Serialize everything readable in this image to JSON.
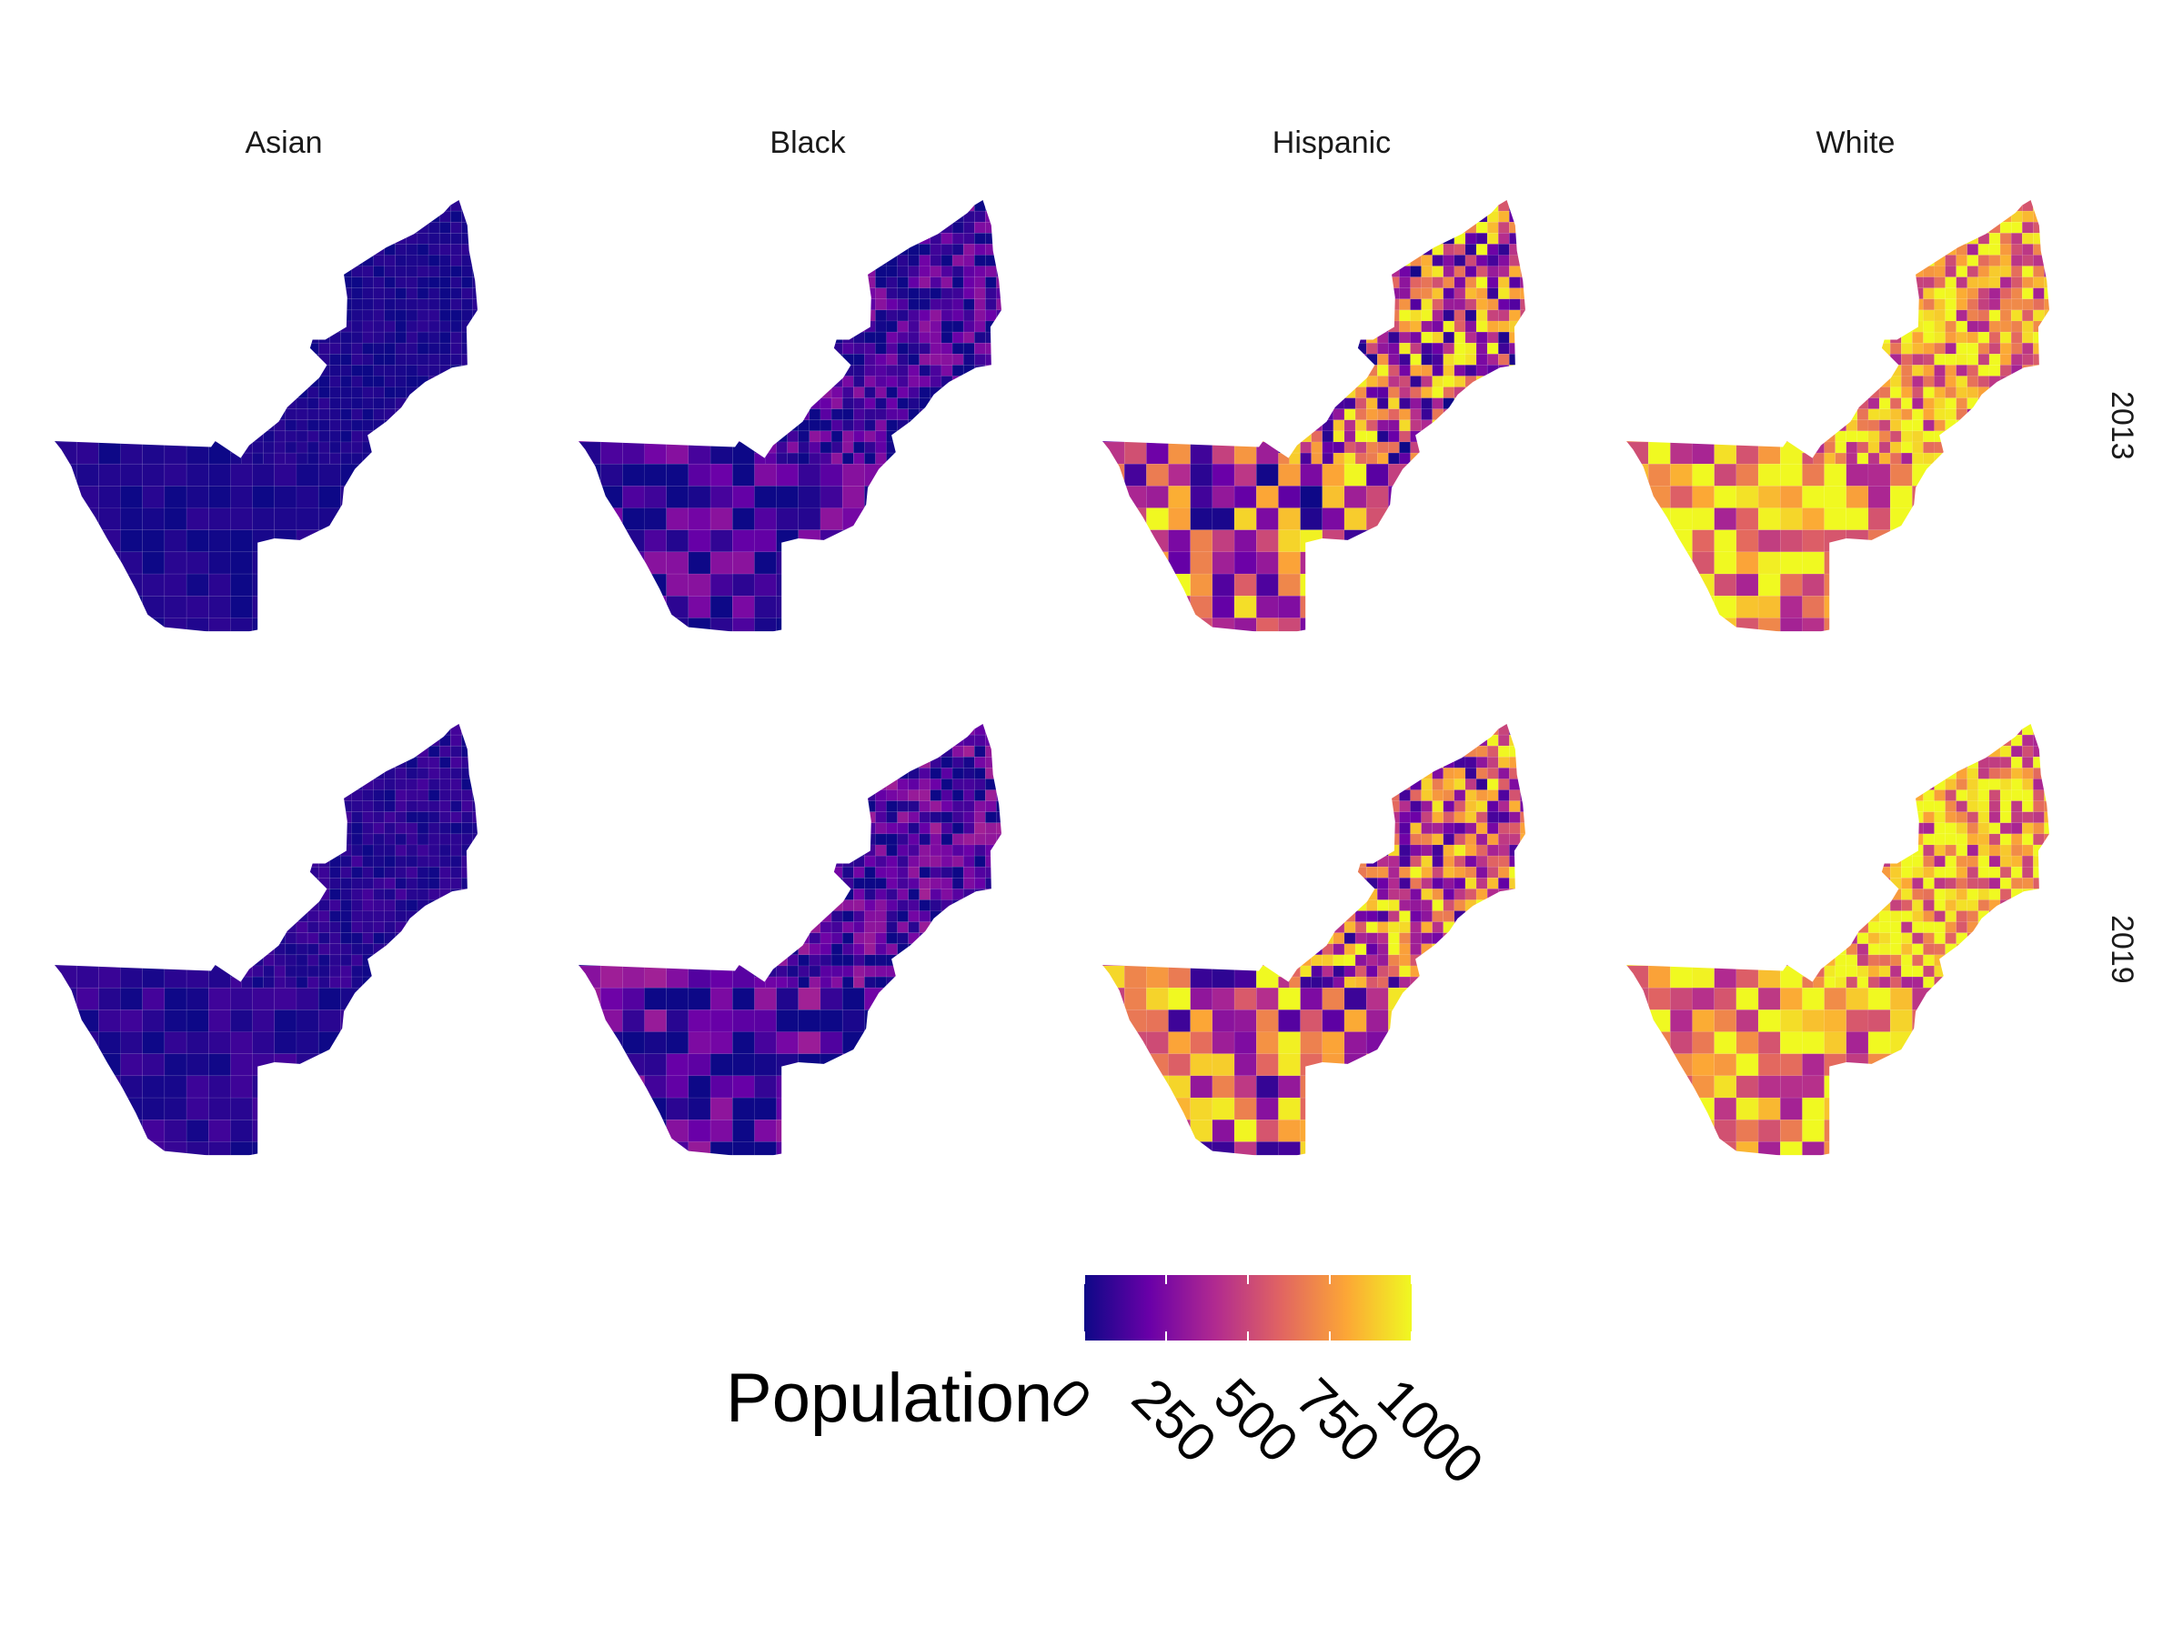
{
  "columns": [
    "Asian",
    "Black",
    "Hispanic",
    "White"
  ],
  "rows": [
    "2013",
    "2019"
  ],
  "legend": {
    "title": "Population",
    "ticks": [
      "0",
      "250",
      "500",
      "750",
      "1000"
    ],
    "tick_values": [
      0,
      250,
      500,
      750,
      1000
    ],
    "domain": [
      0,
      1000
    ],
    "palette": [
      "#0d0887",
      "#6a00a8",
      "#b12a90",
      "#e16462",
      "#fca636",
      "#f0f921"
    ]
  },
  "panels": {
    "Asian": {
      "2013": {
        "base": 30,
        "spread": 40
      },
      "2019": {
        "base": 60,
        "spread": 60
      }
    },
    "Black": {
      "2013": {
        "base": 120,
        "spread": 180
      },
      "2019": {
        "base": 140,
        "spread": 220
      }
    },
    "Hispanic": {
      "2013": {
        "base": 520,
        "spread": 520
      },
      "2019": {
        "base": 560,
        "spread": 500
      }
    },
    "White": {
      "2013": {
        "base": 780,
        "spread": 420
      },
      "2019": {
        "base": 780,
        "spread": 420
      }
    }
  }
}
